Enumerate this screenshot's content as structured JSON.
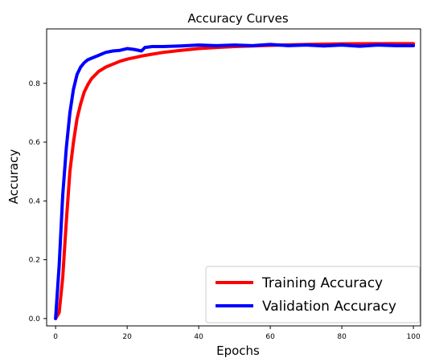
{
  "chart_data": {
    "type": "line",
    "title": "Accuracy Curves",
    "xlabel": "Epochs",
    "ylabel": "Accuracy",
    "xlim": [
      -2.5,
      102
    ],
    "ylim": [
      -0.025,
      0.985
    ],
    "xticks": [
      0,
      20,
      40,
      60,
      80,
      100
    ],
    "yticks": [
      0.0,
      0.2,
      0.4,
      0.6,
      0.8
    ],
    "ytick_labels": [
      "0.0",
      "0.2",
      "0.4",
      "0.6",
      "0.8"
    ],
    "grid": false,
    "legend_position": "lower-right",
    "series": [
      {
        "name": "Training Accuracy",
        "color": "#ff0000",
        "x": [
          0,
          1,
          2,
          3,
          4,
          5,
          6,
          7,
          8,
          9,
          10,
          12,
          14,
          16,
          18,
          20,
          25,
          30,
          35,
          40,
          45,
          50,
          60,
          70,
          80,
          90,
          100
        ],
        "y": [
          0.0,
          0.02,
          0.14,
          0.33,
          0.5,
          0.6,
          0.68,
          0.73,
          0.77,
          0.795,
          0.815,
          0.84,
          0.855,
          0.865,
          0.875,
          0.882,
          0.895,
          0.905,
          0.912,
          0.918,
          0.922,
          0.925,
          0.929,
          0.932,
          0.934,
          0.935,
          0.935
        ]
      },
      {
        "name": "Validation Accuracy",
        "color": "#0000ff",
        "x": [
          0,
          1,
          2,
          3,
          4,
          5,
          6,
          7,
          8,
          9,
          10,
          12,
          14,
          16,
          18,
          20,
          22,
          24,
          25,
          27,
          30,
          35,
          40,
          45,
          50,
          55,
          60,
          65,
          70,
          75,
          80,
          85,
          90,
          95,
          100
        ],
        "y": [
          0.0,
          0.18,
          0.42,
          0.58,
          0.7,
          0.78,
          0.83,
          0.855,
          0.87,
          0.88,
          0.885,
          0.895,
          0.905,
          0.91,
          0.912,
          0.918,
          0.915,
          0.91,
          0.922,
          0.925,
          0.925,
          0.927,
          0.93,
          0.928,
          0.93,
          0.928,
          0.932,
          0.928,
          0.93,
          0.927,
          0.93,
          0.926,
          0.93,
          0.928,
          0.928
        ]
      }
    ]
  }
}
